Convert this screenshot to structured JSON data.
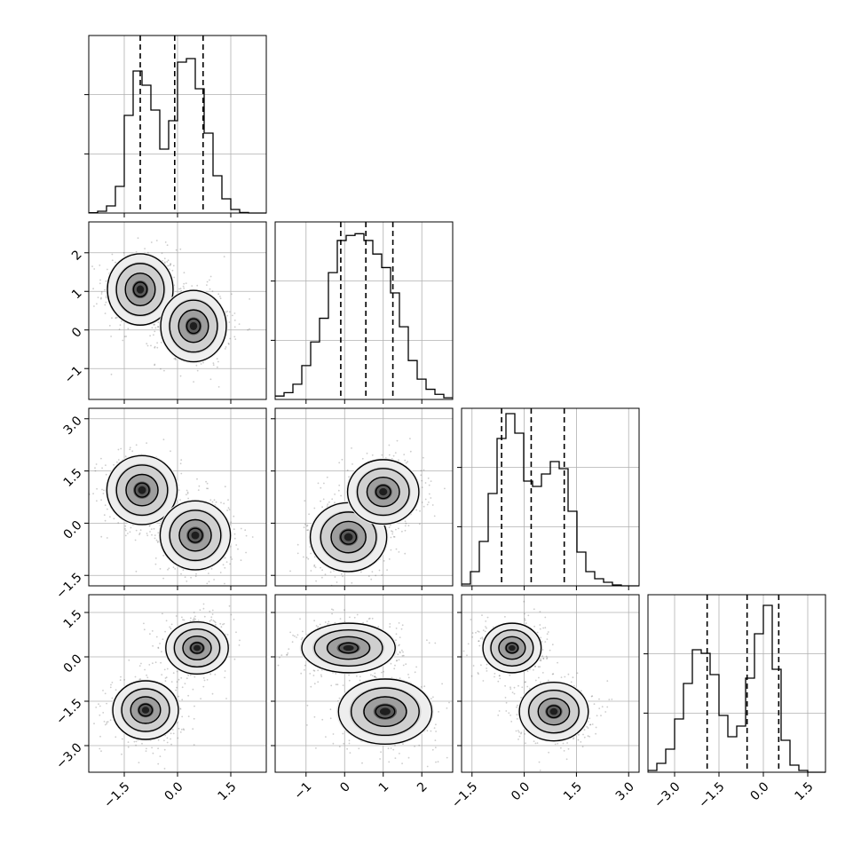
{
  "chart_data": {
    "type": "corner",
    "parameters": [
      {
        "axis_range": [
          -2.5,
          2.5
        ],
        "ticks": [
          -1.5,
          0.0,
          1.5
        ],
        "tick_labels": [
          "−1.5",
          "0.0",
          "1.5"
        ],
        "histogram": {
          "bin_edges": [
            -2.5,
            -2.25,
            -2.0,
            -1.75,
            -1.5,
            -1.25,
            -1.0,
            -0.75,
            -0.5,
            -0.25,
            0.0,
            0.25,
            0.5,
            0.75,
            1.0,
            1.25,
            1.5,
            1.75,
            2.0,
            2.25,
            2.5
          ],
          "values": [
            0.002,
            0.01,
            0.04,
            0.15,
            0.55,
            0.8,
            0.72,
            0.58,
            0.36,
            0.52,
            0.85,
            0.87,
            0.7,
            0.45,
            0.21,
            0.08,
            0.02,
            0.003,
            0,
            0
          ],
          "ymax": 1.0,
          "quantiles": [
            -1.05,
            -0.08,
            0.72
          ]
        }
      },
      {
        "axis_range": [
          -1.8,
          2.8
        ],
        "ticks": [
          -1,
          0,
          1,
          2
        ],
        "tick_labels": [
          "−1",
          "0",
          "1",
          "2"
        ],
        "histogram": {
          "bin_edges": [
            -1.8,
            -1.57,
            -1.34,
            -1.11,
            -0.88,
            -0.65,
            -0.42,
            -0.19,
            0.04,
            0.27,
            0.5,
            0.73,
            0.96,
            1.19,
            1.42,
            1.65,
            1.88,
            2.11,
            2.34,
            2.57,
            2.8
          ],
          "values": [
            0.02,
            0.04,
            0.09,
            0.2,
            0.34,
            0.48,
            0.75,
            0.94,
            0.97,
            0.98,
            0.94,
            0.86,
            0.78,
            0.63,
            0.43,
            0.23,
            0.12,
            0.06,
            0.03,
            0.01
          ],
          "ymax": 1.05,
          "quantiles": [
            -0.1,
            0.55,
            1.25
          ]
        }
      },
      {
        "axis_range": [
          -1.8,
          3.3
        ],
        "ticks": [
          -1.5,
          0.0,
          1.5,
          3.0
        ],
        "tick_labels": [
          "−1.5",
          "0.0",
          "1.5",
          "3.0"
        ],
        "histogram": {
          "bin_edges": [
            -1.8,
            -1.545,
            -1.29,
            -1.035,
            -0.78,
            -0.525,
            -0.27,
            -0.015,
            0.24,
            0.495,
            0.75,
            1.005,
            1.26,
            1.515,
            1.77,
            2.025,
            2.28,
            2.535,
            2.79,
            3.045,
            3.3
          ],
          "values": [
            0.01,
            0.08,
            0.25,
            0.52,
            0.83,
            0.97,
            0.86,
            0.59,
            0.56,
            0.63,
            0.7,
            0.66,
            0.42,
            0.19,
            0.08,
            0.04,
            0.02,
            0.005,
            0,
            0
          ],
          "ymax": 1.0,
          "quantiles": [
            -0.65,
            0.2,
            1.15
          ]
        }
      },
      {
        "axis_range": [
          -3.9,
          2.1
        ],
        "ticks": [
          -3.0,
          -1.5,
          0.0,
          1.5
        ],
        "tick_labels": [
          "−3.0",
          "−1.5",
          "0.0",
          "1.5"
        ],
        "histogram": {
          "bin_edges": [
            -3.9,
            -3.6,
            -3.3,
            -3.0,
            -2.7,
            -2.4,
            -2.1,
            -1.8,
            -1.5,
            -1.2,
            -0.9,
            -0.6,
            -0.3,
            0.0,
            0.3,
            0.6,
            0.9,
            1.2,
            1.5,
            1.8,
            2.1
          ],
          "values": [
            0.01,
            0.05,
            0.13,
            0.3,
            0.5,
            0.69,
            0.67,
            0.55,
            0.32,
            0.2,
            0.26,
            0.53,
            0.78,
            0.94,
            0.58,
            0.18,
            0.04,
            0.01,
            0,
            0
          ],
          "ymax": 1.0,
          "quantiles": [
            -1.9,
            -0.55,
            0.52
          ]
        }
      }
    ],
    "contour_panels": [
      {
        "x_param": 0,
        "y_param": 1,
        "modes": [
          {
            "cx": -1.05,
            "cy": 1.05,
            "sx": 0.42,
            "sy": 0.42
          },
          {
            "cx": 0.45,
            "cy": 0.1,
            "sx": 0.42,
            "sy": 0.42
          }
        ]
      },
      {
        "x_param": 0,
        "y_param": 2,
        "modes": [
          {
            "cx": -1.0,
            "cy": 0.95,
            "sx": 0.45,
            "sy": 0.45
          },
          {
            "cx": 0.5,
            "cy": -0.35,
            "sx": 0.45,
            "sy": 0.45
          }
        ]
      },
      {
        "x_param": 1,
        "y_param": 2,
        "modes": [
          {
            "cx": 0.1,
            "cy": -0.4,
            "sx": 0.45,
            "sy": 0.45
          },
          {
            "cx": 1.0,
            "cy": 0.9,
            "sx": 0.42,
            "sy": 0.42
          }
        ]
      },
      {
        "x_param": 0,
        "y_param": 3,
        "modes": [
          {
            "cx": 0.55,
            "cy": 0.3,
            "sx": 0.4,
            "sy": 0.4
          },
          {
            "cx": -0.9,
            "cy": -1.8,
            "sx": 0.42,
            "sy": 0.45
          }
        ]
      },
      {
        "x_param": 1,
        "y_param": 3,
        "modes": [
          {
            "cx": 0.1,
            "cy": 0.3,
            "sx": 0.55,
            "sy": 0.38
          },
          {
            "cx": 1.05,
            "cy": -1.85,
            "sx": 0.55,
            "sy": 0.5
          }
        ]
      },
      {
        "x_param": 2,
        "y_param": 3,
        "modes": [
          {
            "cx": -0.35,
            "cy": 0.3,
            "sx": 0.38,
            "sy": 0.38
          },
          {
            "cx": 0.85,
            "cy": -1.85,
            "sx": 0.45,
            "sy": 0.45
          }
        ]
      }
    ],
    "grid": true
  }
}
